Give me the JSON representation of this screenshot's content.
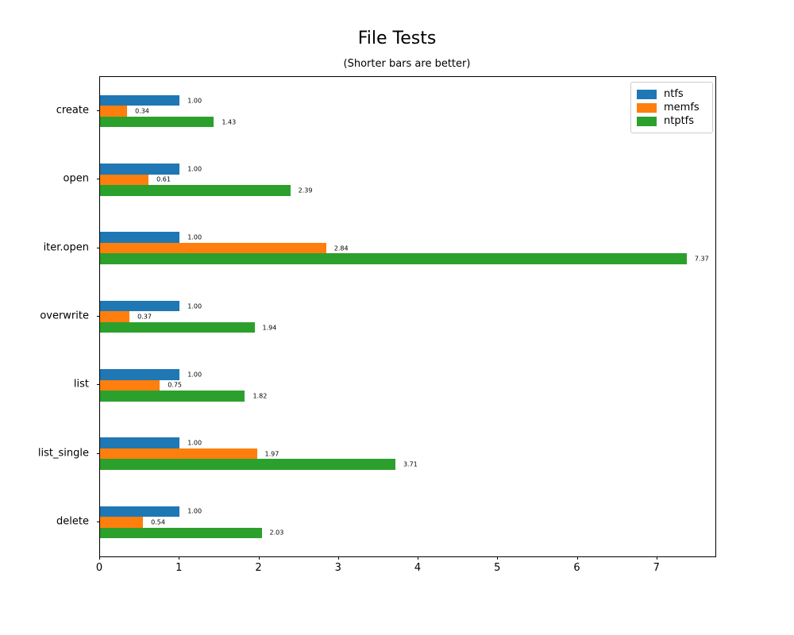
{
  "chart_data": {
    "type": "bar",
    "orientation": "horizontal",
    "title": "File Tests",
    "subtitle": "(Shorter bars are better)",
    "categories": [
      "create",
      "open",
      "iter.open",
      "overwrite",
      "list",
      "list_single",
      "delete"
    ],
    "series": [
      {
        "name": "ntfs",
        "color": "#1f77b4",
        "values": [
          1.0,
          1.0,
          1.0,
          1.0,
          1.0,
          1.0,
          1.0
        ]
      },
      {
        "name": "memfs",
        "color": "#ff7f0e",
        "values": [
          0.34,
          0.61,
          2.84,
          0.37,
          0.75,
          1.97,
          0.54
        ]
      },
      {
        "name": "ntptfs",
        "color": "#2ca02c",
        "values": [
          1.43,
          2.39,
          7.37,
          1.94,
          1.82,
          3.71,
          2.03
        ]
      }
    ],
    "value_labels": [
      [
        "1.00",
        "0.34",
        "1.43"
      ],
      [
        "1.00",
        "0.61",
        "2.39"
      ],
      [
        "1.00",
        "2.84",
        "7.37"
      ],
      [
        "1.00",
        "0.37",
        "1.94"
      ],
      [
        "1.00",
        "0.75",
        "1.82"
      ],
      [
        "1.00",
        "1.97",
        "3.71"
      ],
      [
        "1.00",
        "0.54",
        "2.03"
      ]
    ],
    "x_ticks": [
      "0",
      "1",
      "2",
      "3",
      "4",
      "5",
      "6",
      "7"
    ],
    "xlim": [
      0,
      7.73
    ],
    "ylim_categories_top_to_bottom": true,
    "grid": false,
    "legend_position": "upper right",
    "xlabel": "",
    "ylabel": ""
  }
}
